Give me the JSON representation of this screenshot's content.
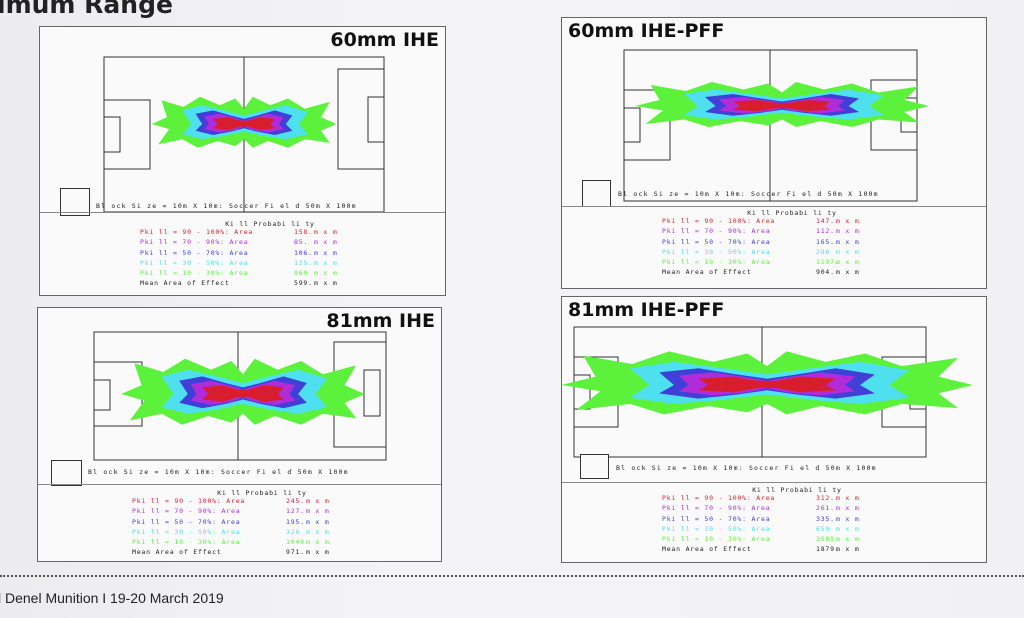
{
  "slide_title": "imum Range",
  "footer": "l Denel Munition I 19-20 March 2019",
  "colors": {
    "pkill_90_100": "#d81e2c",
    "pkill_70_90": "#b02cd8",
    "pkill_50_70": "#4040d8",
    "pkill_30_50": "#4ee0ee",
    "pkill_10_30": "#5cf23c"
  },
  "panels": [
    {
      "title": "60mm IHE",
      "block_label": "Bl ock Si ze = 10m X 10m: Soccer Fi el d 50m X 100m",
      "legend_title": "Ki ll Probabi li ty",
      "legend_rows": [
        {
          "label": "Pki ll = 90 - 100%: Area",
          "value": "158.",
          "unit": "m x m",
          "color": "#d81e2c"
        },
        {
          "label": "Pki ll = 70 - 90%: Area",
          "value": "85.",
          "unit": "m x m",
          "color": "#b02cd8"
        },
        {
          "label": "Pki ll = 50 - 70%: Area",
          "value": "106.",
          "unit": "m x m",
          "color": "#4040d8"
        },
        {
          "label": "Pki ll = 30 - 50%: Area",
          "value": "135.",
          "unit": "m x m",
          "color": "#4ee0ee"
        },
        {
          "label": "Pki ll = 10 - 30%: Area",
          "value": "860",
          "unit": "m x m",
          "color": "#5cf23c"
        },
        {
          "label": "Mean Area of Effect",
          "value": "599.",
          "unit": "m x m",
          "color": "#222222"
        }
      ]
    },
    {
      "title": "60mm IHE-PFF",
      "block_label": "Bl ock Si ze = 10m X 10m: Soccer Fi el d 50m X 100m",
      "legend_title": "Ki ll Probabi li ty",
      "legend_rows": [
        {
          "label": "Pki ll = 90 - 100%: Area",
          "value": "147.",
          "unit": "m x m",
          "color": "#d81e2c"
        },
        {
          "label": "Pki ll = 70 - 90%: Area",
          "value": "112.",
          "unit": "m x m",
          "color": "#b02cd8"
        },
        {
          "label": "Pki ll = 50 - 70%: Area",
          "value": "165.",
          "unit": "m x m",
          "color": "#4040d8"
        },
        {
          "label": "Pki ll = 30 - 50%: Area",
          "value": "286",
          "unit": "m x m",
          "color": "#4ee0ee"
        },
        {
          "label": "Pki ll = 10 - 30%: Area",
          "value": "1197.",
          "unit": "m x m",
          "color": "#5cf23c"
        },
        {
          "label": "Mean Area of Effect",
          "value": "904.",
          "unit": "m x m",
          "color": "#222222"
        }
      ]
    },
    {
      "title": "81mm IHE",
      "block_label": "Bl ock Si ze = 10m X 10m: Soccer Fi el d 50m X 100m",
      "legend_title": "Ki ll Probabi li ty",
      "legend_rows": [
        {
          "label": "Pki ll = 90 - 100%: Area",
          "value": "245.",
          "unit": "m x m",
          "color": "#d81e2c"
        },
        {
          "label": "Pki ll = 70 - 90%: Area",
          "value": "127.",
          "unit": "m x m",
          "color": "#b02cd8"
        },
        {
          "label": "Pki ll = 50 - 70%: Area",
          "value": "195.",
          "unit": "m x m",
          "color": "#4040d8"
        },
        {
          "label": "Pki ll = 30 - 50%: Area",
          "value": "326",
          "unit": "m x m",
          "color": "#4ee0ee"
        },
        {
          "label": "Pki ll = 10 - 30%: Area",
          "value": "1049",
          "unit": "m x m",
          "color": "#5cf23c"
        },
        {
          "label": "Mean Area of Effect",
          "value": "971.",
          "unit": "m x m",
          "color": "#222222"
        }
      ]
    },
    {
      "title": "81mm IHE-PFF",
      "block_label": "Bl ock Si ze = 10m X 10m: Soccer Fi el d 50m X 100m",
      "legend_title": "Ki ll Probabi li ty",
      "legend_rows": [
        {
          "label": "Pki ll = 90 - 100%: Area",
          "value": "312.",
          "unit": "m x m",
          "color": "#d81e2c"
        },
        {
          "label": "Pki ll = 70 - 90%: Area",
          "value": "261.",
          "unit": "m x m",
          "color": "#b02cd8"
        },
        {
          "label": "Pki ll = 50 - 70%: Area",
          "value": "335.",
          "unit": "m x m",
          "color": "#4040d8"
        },
        {
          "label": "Pki ll = 30 - 50%: Area",
          "value": "659",
          "unit": "m x m",
          "color": "#4ee0ee"
        },
        {
          "label": "Pki ll = 10 - 30%: Area",
          "value": "2585",
          "unit": "m x m",
          "color": "#5cf23c"
        },
        {
          "label": "Mean Area of Effect",
          "value": "1879.",
          "unit": "m x m",
          "color": "#222222"
        }
      ]
    }
  ]
}
